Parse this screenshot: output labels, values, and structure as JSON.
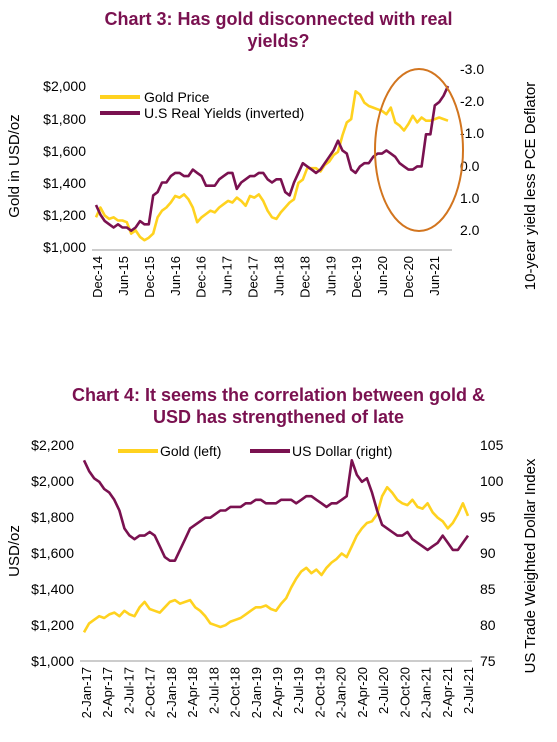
{
  "chart_data": [
    {
      "type": "line",
      "title": "Chart 3: Has gold disconnected with real yields?",
      "ylabel": "Gold in USD/oz",
      "y2label": "10-year yield less PCE Deflator",
      "ylim": [
        1000,
        2100
      ],
      "y2lim": [
        2.4,
        -3.2
      ],
      "y2_inverted": true,
      "yticks": [
        "$1,000",
        "$1,200",
        "$1,400",
        "$1,600",
        "$1,800",
        "$2,000"
      ],
      "y2ticks": [
        "2.0",
        "1.0",
        "0.0",
        "-1.0",
        "-2.0",
        "-3.0"
      ],
      "xticks": [
        "Dec-14",
        "Jun-15",
        "Dec-15",
        "Jun-16",
        "Dec-16",
        "Jun-17",
        "Dec-17",
        "Jun-18",
        "Dec-18",
        "Jun-19",
        "Dec-19",
        "Jun-20",
        "Dec-20",
        "Jun-21"
      ],
      "legend": "top-left",
      "annotation": "circle highlighting 2020-2021",
      "series": [
        {
          "name": "Gold Price",
          "axis": "left",
          "color": "#ffd21f",
          "x": [
            0,
            1,
            2,
            3,
            4,
            5,
            6,
            7,
            8,
            9,
            10,
            11,
            12,
            13,
            14,
            15,
            16,
            17,
            18,
            19,
            20,
            21,
            22,
            23,
            24,
            25,
            26,
            27,
            28,
            29,
            30,
            31,
            32,
            33,
            34,
            35,
            36,
            37,
            38,
            39,
            40,
            41,
            42,
            43,
            44,
            45,
            46,
            47,
            48,
            49,
            50,
            51,
            52,
            53,
            54,
            55,
            56,
            57,
            58,
            59,
            60,
            61,
            62,
            63,
            64,
            65,
            66,
            67,
            68,
            69,
            70,
            71,
            72,
            73,
            74,
            75,
            76,
            77,
            78,
            79,
            80
          ],
          "y": [
            1200,
            1260,
            1210,
            1190,
            1200,
            1180,
            1180,
            1170,
            1100,
            1120,
            1080,
            1060,
            1075,
            1100,
            1200,
            1240,
            1260,
            1290,
            1330,
            1320,
            1340,
            1310,
            1260,
            1170,
            1200,
            1220,
            1240,
            1230,
            1260,
            1280,
            1300,
            1290,
            1320,
            1300,
            1270,
            1330,
            1320,
            1340,
            1300,
            1240,
            1200,
            1190,
            1230,
            1260,
            1290,
            1310,
            1410,
            1430,
            1500,
            1500,
            1500,
            1480,
            1520,
            1540,
            1580,
            1600,
            1700,
            1780,
            1800,
            1970,
            1950,
            1900,
            1880,
            1870,
            1860,
            1850,
            1830,
            1870,
            1780,
            1760,
            1730,
            1770,
            1820,
            1780,
            1810,
            1790,
            1790,
            1800,
            1810,
            1800,
            1790
          ]
        },
        {
          "name": "U.S Real Yields (inverted)",
          "axis": "right",
          "color": "#7a1150",
          "x": [
            0,
            1,
            2,
            3,
            4,
            5,
            6,
            7,
            8,
            9,
            10,
            11,
            12,
            13,
            14,
            15,
            16,
            17,
            18,
            19,
            20,
            21,
            22,
            23,
            24,
            25,
            26,
            27,
            28,
            29,
            30,
            31,
            32,
            33,
            34,
            35,
            36,
            37,
            38,
            39,
            40,
            41,
            42,
            43,
            44,
            45,
            46,
            47,
            48,
            49,
            50,
            51,
            52,
            53,
            54,
            55,
            56,
            57,
            58,
            59,
            60,
            61,
            62,
            63,
            64,
            65,
            66,
            67,
            68,
            69,
            70,
            71,
            72,
            73,
            74,
            75,
            76,
            77,
            78,
            79,
            80
          ],
          "y": [
            1.0,
            1.3,
            1.5,
            1.6,
            1.7,
            1.6,
            1.7,
            1.7,
            1.8,
            1.7,
            1.5,
            1.6,
            1.6,
            0.7,
            0.6,
            0.3,
            0.3,
            0.1,
            0.0,
            0.0,
            0.1,
            0.1,
            -0.1,
            0.0,
            0.1,
            0.4,
            0.4,
            0.4,
            0.2,
            0.1,
            0.0,
            0.0,
            0.5,
            0.3,
            0.2,
            0.1,
            0.1,
            0.0,
            0.0,
            0.2,
            0.3,
            0.2,
            0.2,
            0.6,
            0.7,
            0.3,
            0.0,
            -0.3,
            -0.2,
            -0.1,
            0.0,
            -0.1,
            -0.3,
            -0.5,
            -0.7,
            -1.0,
            -0.7,
            -0.6,
            -0.1,
            0.0,
            -0.2,
            -0.3,
            -0.3,
            -0.5,
            -0.6,
            -0.6,
            -0.7,
            -0.6,
            -0.5,
            -0.3,
            -0.2,
            -0.1,
            -0.1,
            -0.2,
            -0.2,
            -1.2,
            -1.2,
            -2.1,
            -2.2,
            -2.4,
            -2.7
          ]
        }
      ]
    },
    {
      "type": "line",
      "title": "Chart 4: It seems the correlation between gold & USD has strengthened of late",
      "ylabel": "USD/oz",
      "y2label": "US Trade Weighted Dollar Index",
      "ylim": [
        1000,
        2200
      ],
      "y2lim": [
        75,
        105
      ],
      "yticks": [
        "$1,000",
        "$1,200",
        "$1,400",
        "$1,600",
        "$1,800",
        "$2,000",
        "$2,200"
      ],
      "y2ticks": [
        "75",
        "80",
        "85",
        "90",
        "95",
        "100",
        "105"
      ],
      "xticks": [
        "2-Jan-17",
        "2-Apr-17",
        "2-Jul-17",
        "2-Oct-17",
        "2-Jan-18",
        "2-Apr-18",
        "2-Jul-18",
        "2-Oct-18",
        "2-Jan-19",
        "2-Apr-19",
        "2-Jul-19",
        "2-Oct-19",
        "2-Jan-20",
        "2-Apr-20",
        "2-Jul-20",
        "2-Oct-20",
        "2-Jan-21",
        "2-Apr-21",
        "2-Jul-21"
      ],
      "legend": "top-center",
      "series": [
        {
          "name": "Gold (left)",
          "axis": "left",
          "color": "#ffd21f",
          "x": [
            0,
            1,
            2,
            3,
            4,
            5,
            6,
            7,
            8,
            9,
            10,
            11,
            12,
            13,
            14,
            15,
            16,
            17,
            18,
            19,
            20,
            21,
            22,
            23,
            24,
            25,
            26,
            27,
            28,
            29,
            30,
            31,
            32,
            33,
            34,
            35,
            36,
            37,
            38,
            39,
            40,
            41,
            42,
            43,
            44,
            45,
            46,
            47,
            48,
            49,
            50,
            51,
            52,
            53,
            54,
            55,
            56,
            57,
            58,
            59,
            60,
            61,
            62,
            63,
            64,
            65,
            66,
            67,
            68,
            69,
            70,
            71,
            72,
            73,
            74,
            75,
            76
          ],
          "y": [
            1160,
            1210,
            1230,
            1250,
            1240,
            1260,
            1270,
            1250,
            1280,
            1260,
            1250,
            1300,
            1330,
            1290,
            1280,
            1270,
            1300,
            1330,
            1340,
            1320,
            1330,
            1340,
            1300,
            1280,
            1250,
            1210,
            1200,
            1190,
            1200,
            1220,
            1230,
            1240,
            1260,
            1280,
            1300,
            1300,
            1310,
            1290,
            1280,
            1320,
            1350,
            1410,
            1460,
            1500,
            1520,
            1490,
            1510,
            1480,
            1520,
            1550,
            1570,
            1600,
            1580,
            1640,
            1700,
            1740,
            1770,
            1780,
            1820,
            1920,
            1970,
            1940,
            1900,
            1880,
            1870,
            1900,
            1860,
            1850,
            1880,
            1830,
            1800,
            1780,
            1740,
            1770,
            1820,
            1880,
            1810
          ]
        },
        {
          "name": "US Dollar (right)",
          "axis": "right",
          "color": "#7a1150",
          "x": [
            0,
            1,
            2,
            3,
            4,
            5,
            6,
            7,
            8,
            9,
            10,
            11,
            12,
            13,
            14,
            15,
            16,
            17,
            18,
            19,
            20,
            21,
            22,
            23,
            24,
            25,
            26,
            27,
            28,
            29,
            30,
            31,
            32,
            33,
            34,
            35,
            36,
            37,
            38,
            39,
            40,
            41,
            42,
            43,
            44,
            45,
            46,
            47,
            48,
            49,
            50,
            51,
            52,
            53,
            54,
            55,
            56,
            57,
            58,
            59,
            60,
            61,
            62,
            63,
            64,
            65,
            66,
            67,
            68,
            69,
            70,
            71,
            72,
            73,
            74,
            75,
            76
          ],
          "y": [
            103,
            101.5,
            100.5,
            100,
            99,
            98.5,
            97.5,
            96,
            93.5,
            92.5,
            92,
            92.5,
            92.5,
            93,
            92.5,
            91,
            89.5,
            89,
            89,
            90.5,
            92,
            93.5,
            94,
            94.5,
            95,
            95,
            95.5,
            96,
            96,
            96.5,
            96.5,
            96.5,
            97,
            97,
            97.5,
            97.5,
            97,
            97,
            97,
            97.5,
            97.5,
            97.5,
            97,
            97.5,
            98,
            98,
            97.5,
            97,
            96.5,
            97,
            97,
            97.5,
            98,
            103,
            101,
            100,
            100.5,
            98.5,
            96,
            94,
            93.5,
            93,
            92.5,
            92.5,
            93,
            92,
            91.5,
            91,
            90.5,
            91,
            91.5,
            92.5,
            91.5,
            90.5,
            90.5,
            91.5,
            92.5
          ]
        }
      ]
    }
  ]
}
